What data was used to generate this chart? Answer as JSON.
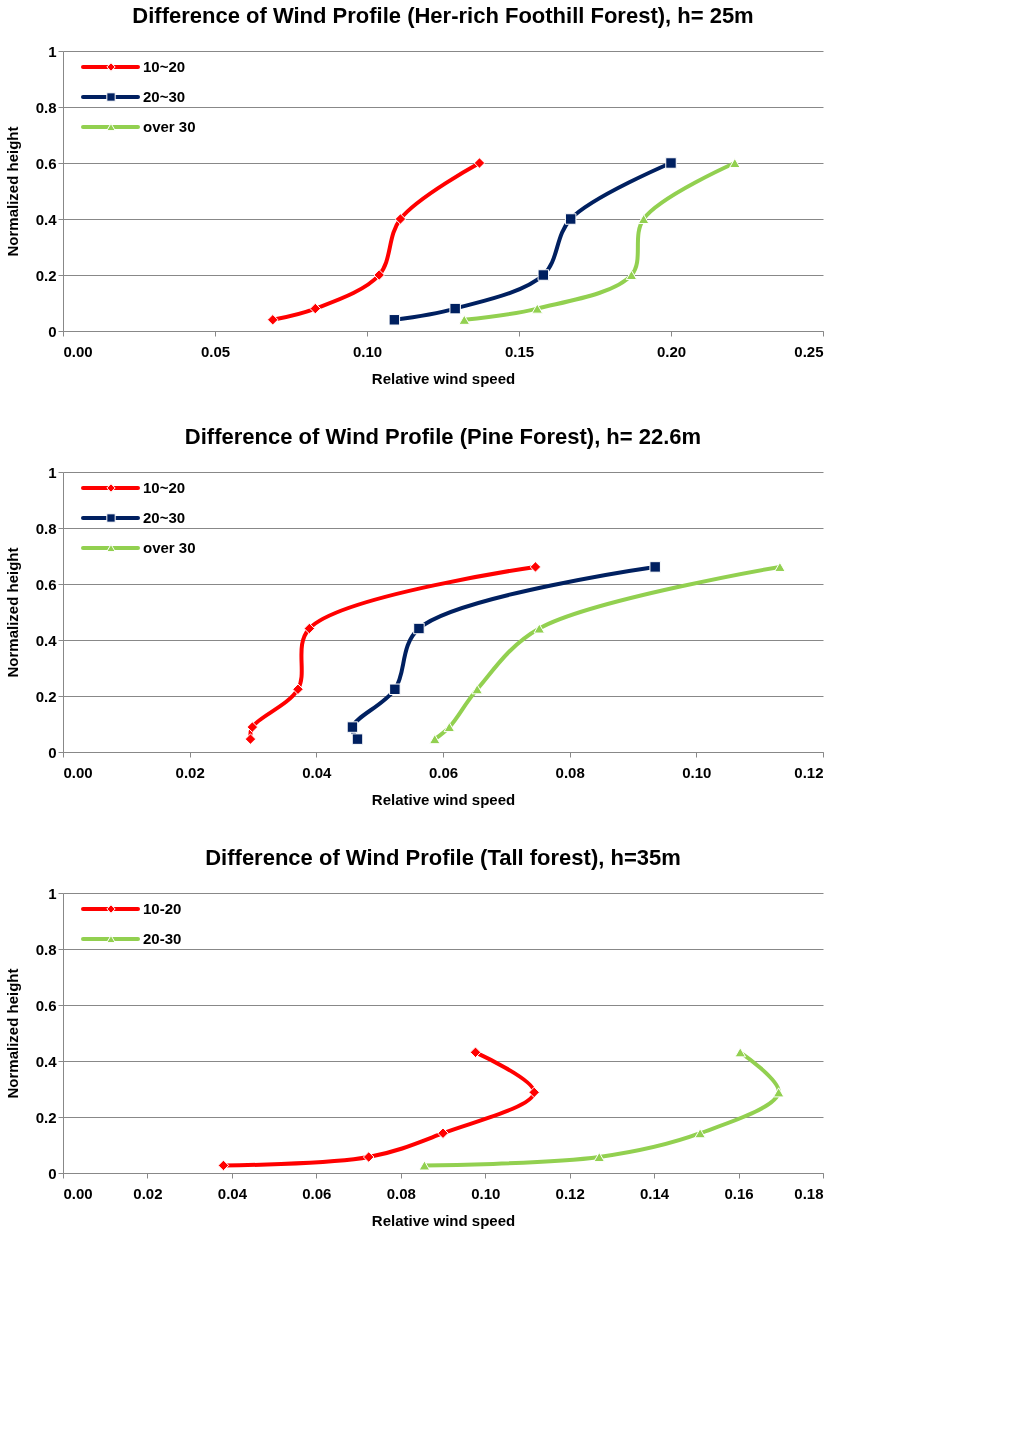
{
  "chart_data": [
    {
      "type": "line",
      "title": "Difference of Wind Profile (Her-rich Foothill Forest), h= 25m",
      "xlabel": "Relative wind speed",
      "ylabel": "Normalized height",
      "xlim": [
        0,
        0.25
      ],
      "xticks": [
        {
          "value": 0,
          "label": "0.00"
        },
        {
          "value": 0.05,
          "label": "0.05"
        },
        {
          "value": 0.1,
          "label": "0.10"
        },
        {
          "value": 0.15,
          "label": "0.15"
        },
        {
          "value": 0.2,
          "label": "0.20"
        },
        {
          "value": 0.25,
          "label": "0.25"
        }
      ],
      "ylim": [
        0,
        1
      ],
      "yticks": [
        0,
        0.2,
        0.4,
        0.6,
        0.8,
        1
      ],
      "grid": "y",
      "legend": "top left",
      "series": [
        {
          "name": "10~20",
          "color": "#ff0000",
          "marker": "diamond",
          "x": [
            0.069,
            0.083,
            0.104,
            0.111,
            0.137
          ],
          "values": [
            0.04,
            0.08,
            0.2,
            0.4,
            0.6
          ]
        },
        {
          "name": "20~30",
          "color": "#002060",
          "marker": "square",
          "x": [
            0.109,
            0.129,
            0.158,
            0.167,
            0.2
          ],
          "values": [
            0.04,
            0.08,
            0.2,
            0.4,
            0.6
          ]
        },
        {
          "name": "over 30",
          "color": "#92d050",
          "marker": "triangle",
          "x": [
            0.132,
            0.156,
            0.187,
            0.191,
            0.221
          ],
          "values": [
            0.04,
            0.08,
            0.2,
            0.4,
            0.6
          ]
        }
      ]
    },
    {
      "type": "line",
      "title": "Difference of Wind Profile (Pine Forest), h= 22.6m",
      "xlabel": "Relative wind speed",
      "ylabel": "Normalized height",
      "xlim": [
        0,
        0.12
      ],
      "xticks": [
        {
          "value": 0,
          "label": "0.00"
        },
        {
          "value": 0.02,
          "label": "0.02"
        },
        {
          "value": 0.04,
          "label": "0.04"
        },
        {
          "value": 0.06,
          "label": "0.06"
        },
        {
          "value": 0.08,
          "label": "0.08"
        },
        {
          "value": 0.1,
          "label": "0.10"
        },
        {
          "value": 0.12,
          "label": "0.12"
        }
      ],
      "ylim": [
        0,
        1
      ],
      "yticks": [
        0,
        0.2,
        0.4,
        0.6,
        0.8,
        1
      ],
      "grid": "y",
      "legend": "top left",
      "series": [
        {
          "name": "10~20",
          "color": "#ff0000",
          "marker": "diamond",
          "x": [
            0.0296,
            0.0299,
            0.0371,
            0.0389,
            0.0746
          ],
          "values": [
            0.046,
            0.089,
            0.224,
            0.441,
            0.661
          ]
        },
        {
          "name": "20~30",
          "color": "#002060",
          "marker": "square",
          "x": [
            0.0465,
            0.0457,
            0.0524,
            0.0562,
            0.0935
          ],
          "values": [
            0.046,
            0.089,
            0.224,
            0.441,
            0.661
          ]
        },
        {
          "name": "over 30",
          "color": "#92d050",
          "marker": "triangle",
          "x": [
            0.0587,
            0.061,
            0.0654,
            0.0752,
            0.1132
          ],
          "values": [
            0.046,
            0.089,
            0.224,
            0.441,
            0.661
          ]
        }
      ]
    },
    {
      "type": "line",
      "title": "Difference of Wind Profile (Tall forest), h=35m",
      "xlabel": "Relative wind speed",
      "ylabel": "Normalized height",
      "xlim": [
        0,
        0.18
      ],
      "xticks": [
        {
          "value": 0,
          "label": "0.00"
        },
        {
          "value": 0.02,
          "label": "0.02"
        },
        {
          "value": 0.04,
          "label": "0.04"
        },
        {
          "value": 0.06,
          "label": "0.06"
        },
        {
          "value": 0.08,
          "label": "0.08"
        },
        {
          "value": 0.1,
          "label": "0.10"
        },
        {
          "value": 0.12,
          "label": "0.12"
        },
        {
          "value": 0.14,
          "label": "0.14"
        },
        {
          "value": 0.16,
          "label": "0.16"
        },
        {
          "value": 0.18,
          "label": "0.18"
        }
      ],
      "ylim": [
        0,
        1
      ],
      "yticks": [
        0,
        0.2,
        0.4,
        0.6,
        0.8,
        1
      ],
      "grid": "y",
      "legend": "top left",
      "series": [
        {
          "name": "10-20",
          "color": "#ff0000",
          "marker": "diamond",
          "x": [
            0.038,
            0.0724,
            0.09,
            0.1116,
            0.0977
          ],
          "values": [
            0.027,
            0.057,
            0.142,
            0.288,
            0.431
          ]
        },
        {
          "name": "20-30",
          "color": "#92d050",
          "marker": "triangle",
          "x": [
            0.0856,
            0.127,
            0.1509,
            0.1695,
            0.1604
          ],
          "values": [
            0.027,
            0.057,
            0.142,
            0.288,
            0.431
          ]
        }
      ]
    }
  ]
}
